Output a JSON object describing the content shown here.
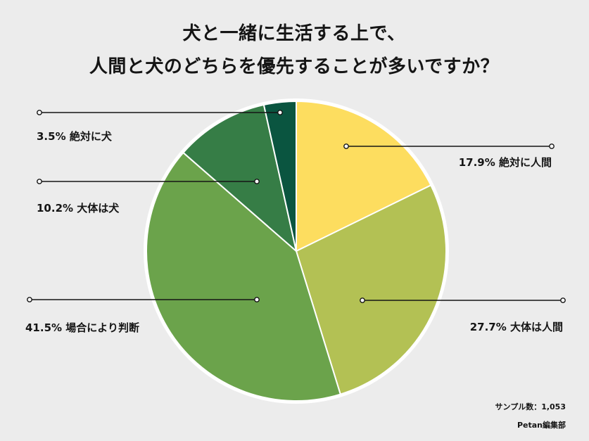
{
  "chart_data": {
    "type": "pie",
    "title": [
      "犬と一緒に生活する上で、",
      "人間と犬のどちらを優先することが多いですか？"
    ],
    "slices": [
      {
        "label": "絶対に人間",
        "value": 17.9,
        "display": "17.9% 絶対に人間",
        "color": "#fddd5f"
      },
      {
        "label": "大体は人間",
        "value": 27.7,
        "display": "27.7% 大体は人間",
        "color": "#b3c154"
      },
      {
        "label": "場合により判断",
        "value": 41.5,
        "display": "41.5% 場合により判断",
        "color": "#6ba34b"
      },
      {
        "label": "大体は犬",
        "value": 10.2,
        "display": "10.2% 大体は犬",
        "color": "#367d46"
      },
      {
        "label": "絶対に犬",
        "value": 3.5,
        "display": "3.5% 絶対に犬",
        "color": "#0a5540"
      }
    ],
    "start_angle_deg": 0,
    "direction": "clockwise",
    "legend": "callout labels with leader lines"
  },
  "footer": {
    "sample": "サンプル数：1,053",
    "source": "Petan編集部"
  }
}
